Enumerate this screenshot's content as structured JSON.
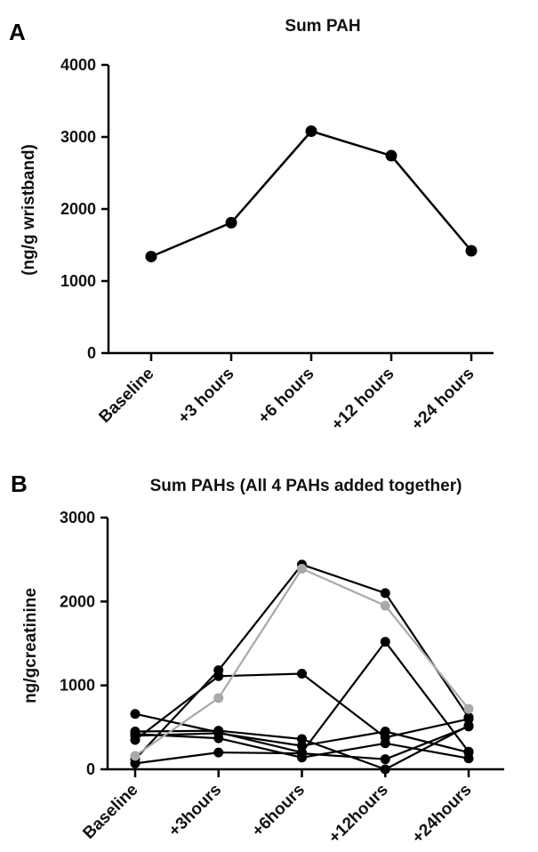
{
  "panels": {
    "a": {
      "letter": "A"
    },
    "b": {
      "letter": "B"
    }
  },
  "chart_data": [
    {
      "type": "line",
      "title": "Sum PAH",
      "xlabel": "",
      "ylabel": "(ng/g wristband)",
      "categories": [
        "Baseline",
        "+3 hours",
        "+6 hours",
        "+12 hours",
        "+24 hours"
      ],
      "ylim": [
        0,
        4000
      ],
      "yticks": [
        0,
        1000,
        2000,
        3000,
        4000
      ],
      "grid": false,
      "series": [
        {
          "values": [
            1340,
            1810,
            3080,
            2740,
            1420
          ],
          "color": "#000000"
        }
      ]
    },
    {
      "type": "line",
      "title": "Sum PAHs (All 4 PAHs added together)",
      "xlabel": "",
      "ylabel": "ng/gcreatinine",
      "categories": [
        "Baseline",
        "+3hours",
        "+6hours",
        "+12hours",
        "+24hours"
      ],
      "ylim": [
        0,
        3000
      ],
      "yticks": [
        0,
        1000,
        2000,
        3000
      ],
      "grid": false,
      "series": [
        {
          "values": [
            120,
            1180,
            2440,
            2100,
            620
          ],
          "color": "#000000"
        },
        {
          "values": [
            160,
            850,
            2390,
            1950,
            720
          ],
          "color": "#a9a9a9"
        },
        {
          "values": [
            350,
            1110,
            1140,
            380,
            600
          ],
          "color": "#000000"
        },
        {
          "values": [
            450,
            460,
            360,
            0,
            520
          ],
          "color": "#000000"
        },
        {
          "values": [
            660,
            440,
            200,
            1520,
            210
          ],
          "color": "#000000"
        },
        {
          "values": [
            400,
            430,
            280,
            450,
            200
          ],
          "color": "#000000"
        },
        {
          "values": [
            70,
            200,
            190,
            120,
            510
          ],
          "color": "#000000"
        },
        {
          "values": [
            420,
            370,
            140,
            310,
            130
          ],
          "color": "#000000"
        }
      ]
    }
  ]
}
